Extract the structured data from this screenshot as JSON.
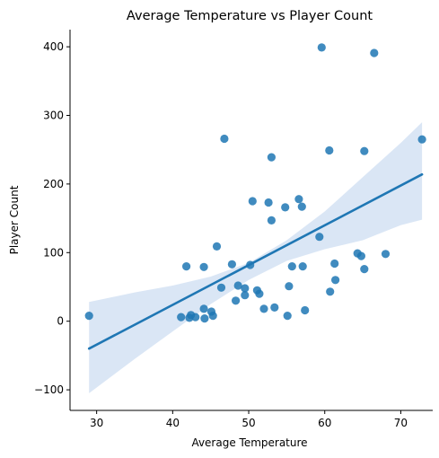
{
  "chart_data": {
    "type": "scatter",
    "title": "Average Temperature vs Player Count",
    "xlabel": "Average Temperature",
    "ylabel": "Player Count",
    "xlim": [
      26.5,
      74.2
    ],
    "ylim": [
      -130,
      425
    ],
    "xticks": [
      30,
      40,
      50,
      60,
      70
    ],
    "yticks": [
      -100,
      0,
      100,
      200,
      300,
      400
    ],
    "xtick_labels": [
      "30",
      "40",
      "50",
      "60",
      "70"
    ],
    "ytick_labels": [
      "−100",
      "0",
      "100",
      "200",
      "300",
      "400"
    ],
    "grid": false,
    "colors": {
      "points": "#1f77b4",
      "line": "#1f77b4",
      "band": "#aec7e8"
    },
    "points": [
      {
        "x": 29.0,
        "y": 8
      },
      {
        "x": 41.1,
        "y": 6
      },
      {
        "x": 41.8,
        "y": 80
      },
      {
        "x": 42.2,
        "y": 5
      },
      {
        "x": 42.4,
        "y": 9
      },
      {
        "x": 43.0,
        "y": 6
      },
      {
        "x": 44.1,
        "y": 79
      },
      {
        "x": 44.1,
        "y": 18
      },
      {
        "x": 44.2,
        "y": 4
      },
      {
        "x": 45.1,
        "y": 14
      },
      {
        "x": 45.3,
        "y": 8
      },
      {
        "x": 45.8,
        "y": 109
      },
      {
        "x": 46.4,
        "y": 49
      },
      {
        "x": 46.8,
        "y": 266
      },
      {
        "x": 47.8,
        "y": 83
      },
      {
        "x": 48.3,
        "y": 30
      },
      {
        "x": 48.6,
        "y": 52
      },
      {
        "x": 49.5,
        "y": 48
      },
      {
        "x": 49.5,
        "y": 38
      },
      {
        "x": 50.2,
        "y": 82
      },
      {
        "x": 50.5,
        "y": 175
      },
      {
        "x": 51.1,
        "y": 45
      },
      {
        "x": 51.4,
        "y": 40
      },
      {
        "x": 52.0,
        "y": 18
      },
      {
        "x": 52.6,
        "y": 173
      },
      {
        "x": 53.0,
        "y": 239
      },
      {
        "x": 53.0,
        "y": 147
      },
      {
        "x": 53.4,
        "y": 20
      },
      {
        "x": 54.8,
        "y": 166
      },
      {
        "x": 55.1,
        "y": 8
      },
      {
        "x": 55.3,
        "y": 51
      },
      {
        "x": 55.7,
        "y": 80
      },
      {
        "x": 56.6,
        "y": 178
      },
      {
        "x": 57.0,
        "y": 167
      },
      {
        "x": 57.1,
        "y": 80
      },
      {
        "x": 57.4,
        "y": 16
      },
      {
        "x": 59.3,
        "y": 123
      },
      {
        "x": 59.6,
        "y": 399
      },
      {
        "x": 60.6,
        "y": 249
      },
      {
        "x": 60.7,
        "y": 43
      },
      {
        "x": 61.3,
        "y": 84
      },
      {
        "x": 61.4,
        "y": 60
      },
      {
        "x": 64.3,
        "y": 99
      },
      {
        "x": 64.8,
        "y": 95
      },
      {
        "x": 65.2,
        "y": 248
      },
      {
        "x": 65.2,
        "y": 76
      },
      {
        "x": 66.5,
        "y": 391
      },
      {
        "x": 68.0,
        "y": 98
      },
      {
        "x": 72.8,
        "y": 265
      }
    ],
    "regression": {
      "x": [
        29.0,
        72.8
      ],
      "y": [
        -40,
        214
      ]
    },
    "confidence_band": {
      "x": [
        29.0,
        35.0,
        40.0,
        45.0,
        50.0,
        55.0,
        60.0,
        65.0,
        70.0,
        72.8
      ],
      "lower": [
        -105,
        -55,
        -15,
        25,
        60,
        88,
        105,
        118,
        140,
        148
      ],
      "upper": [
        28,
        42,
        52,
        65,
        85,
        118,
        160,
        210,
        260,
        290
      ]
    }
  }
}
